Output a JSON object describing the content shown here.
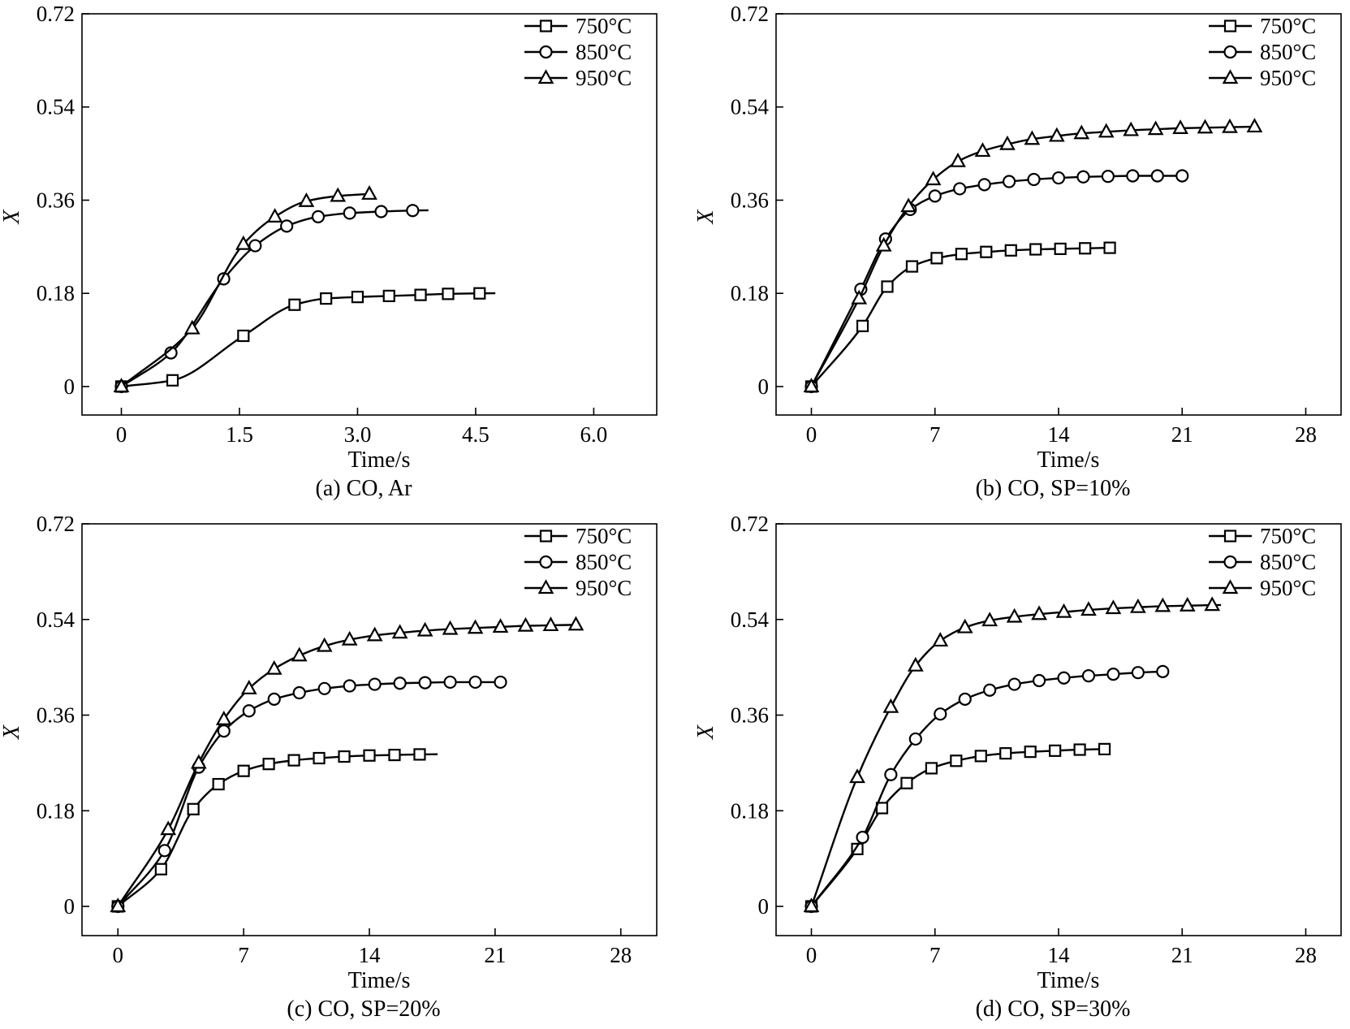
{
  "chart_data": [
    {
      "id": "a",
      "type": "line",
      "caption": "(a) CO, Ar",
      "xlabel": "Time/s",
      "ylabel": "X",
      "xlim": [
        -0.5,
        6.8
      ],
      "ylim": [
        -0.055,
        0.72
      ],
      "xticks": [
        0,
        1.5,
        3.0,
        4.5,
        6.0
      ],
      "xtick_labels": [
        "0",
        "1.5",
        "3.0",
        "4.5",
        "6.0"
      ],
      "yticks": [
        0,
        0.18,
        0.36,
        0.54,
        0.72
      ],
      "ytick_labels": [
        "0",
        "0.18",
        "0.36",
        "0.54",
        "0.72"
      ],
      "legend_position": "top-right",
      "series": [
        {
          "name": "750°C",
          "marker": "square",
          "x": [
            0,
            0.65,
            1.55,
            2.2,
            2.6,
            3.0,
            3.4,
            3.8,
            4.15,
            4.55
          ],
          "y": [
            0,
            0.012,
            0.098,
            0.158,
            0.17,
            0.173,
            0.175,
            0.177,
            0.179,
            0.18
          ],
          "x_end": 4.75
        },
        {
          "name": "850°C",
          "marker": "circle",
          "x": [
            0,
            0.63,
            1.3,
            1.7,
            2.1,
            2.5,
            2.9,
            3.3,
            3.7
          ],
          "y": [
            0,
            0.065,
            0.208,
            0.272,
            0.31,
            0.328,
            0.335,
            0.338,
            0.34
          ],
          "x_end": 3.9
        },
        {
          "name": "950°C",
          "marker": "triangle",
          "x": [
            0,
            0.9,
            1.55,
            1.95,
            2.35,
            2.75,
            3.15
          ],
          "y": [
            0,
            0.112,
            0.275,
            0.328,
            0.358,
            0.368,
            0.372
          ],
          "x_end": 3.15
        }
      ]
    },
    {
      "id": "b",
      "type": "line",
      "caption": "(b) CO, SP=10%",
      "xlabel": "Time/s",
      "ylabel": "X",
      "xlim": [
        -2,
        30
      ],
      "ylim": [
        -0.055,
        0.72
      ],
      "xticks": [
        0,
        7,
        14,
        21,
        28
      ],
      "xtick_labels": [
        "0",
        "7",
        "14",
        "21",
        "28"
      ],
      "yticks": [
        0,
        0.18,
        0.36,
        0.54,
        0.72
      ],
      "ytick_labels": [
        "0",
        "0.18",
        "0.36",
        "0.54",
        "0.72"
      ],
      "legend_position": "top-right",
      "series": [
        {
          "name": "750°C",
          "marker": "square",
          "x": [
            0,
            2.9,
            4.3,
            5.7,
            7.1,
            8.5,
            9.9,
            11.3,
            12.7,
            14.1,
            15.5,
            16.9
          ],
          "y": [
            0,
            0.117,
            0.193,
            0.232,
            0.248,
            0.256,
            0.26,
            0.263,
            0.265,
            0.266,
            0.267,
            0.268
          ],
          "x_end": 16.9
        },
        {
          "name": "850°C",
          "marker": "circle",
          "x": [
            0,
            2.8,
            4.2,
            5.6,
            7.0,
            8.4,
            9.8,
            11.2,
            12.6,
            14.0,
            15.4,
            16.8,
            18.2,
            19.6,
            21.0
          ],
          "y": [
            0,
            0.188,
            0.285,
            0.342,
            0.368,
            0.382,
            0.39,
            0.396,
            0.4,
            0.403,
            0.405,
            0.406,
            0.407,
            0.407,
            0.407
          ],
          "x_end": 21.0
        },
        {
          "name": "950°C",
          "marker": "triangle",
          "x": [
            0,
            2.7,
            4.1,
            5.5,
            6.9,
            8.3,
            9.7,
            11.1,
            12.5,
            13.9,
            15.3,
            16.7,
            18.1,
            19.5,
            20.9,
            22.3,
            23.7,
            25.1
          ],
          "y": [
            0,
            0.17,
            0.272,
            0.348,
            0.4,
            0.435,
            0.455,
            0.468,
            0.478,
            0.484,
            0.489,
            0.492,
            0.495,
            0.497,
            0.499,
            0.5,
            0.501,
            0.502
          ],
          "x_end": 25.1
        }
      ]
    },
    {
      "id": "c",
      "type": "line",
      "caption": "(c) CO, SP=20%",
      "xlabel": "Time/s",
      "ylabel": "X",
      "xlim": [
        -2,
        30
      ],
      "ylim": [
        -0.055,
        0.72
      ],
      "xticks": [
        0,
        7,
        14,
        21,
        28
      ],
      "xtick_labels": [
        "0",
        "7",
        "14",
        "21",
        "28"
      ],
      "yticks": [
        0,
        0.18,
        0.36,
        0.54,
        0.72
      ],
      "ytick_labels": [
        "0",
        "0.18",
        "0.36",
        "0.54",
        "0.72"
      ],
      "legend_position": "top-right",
      "series": [
        {
          "name": "750°C",
          "marker": "square",
          "x": [
            0,
            2.4,
            4.2,
            5.6,
            7.0,
            8.4,
            9.8,
            11.2,
            12.6,
            14.0,
            15.4,
            16.8
          ],
          "y": [
            0,
            0.07,
            0.183,
            0.23,
            0.255,
            0.268,
            0.275,
            0.279,
            0.282,
            0.284,
            0.285,
            0.286
          ],
          "x_end": 17.8
        },
        {
          "name": "850°C",
          "marker": "circle",
          "x": [
            0,
            2.6,
            4.5,
            5.9,
            7.3,
            8.7,
            10.1,
            11.5,
            12.9,
            14.3,
            15.7,
            17.1,
            18.5,
            19.9,
            21.3
          ],
          "y": [
            0,
            0.105,
            0.262,
            0.33,
            0.368,
            0.39,
            0.402,
            0.41,
            0.415,
            0.418,
            0.42,
            0.421,
            0.422,
            0.422,
            0.422
          ],
          "x_end": 21.6
        },
        {
          "name": "950°C",
          "marker": "triangle",
          "x": [
            0,
            2.8,
            4.5,
            5.9,
            7.3,
            8.7,
            10.1,
            11.5,
            12.9,
            14.3,
            15.7,
            17.1,
            18.5,
            19.9,
            21.3,
            22.7,
            24.1,
            25.5
          ],
          "y": [
            0,
            0.145,
            0.27,
            0.352,
            0.41,
            0.447,
            0.472,
            0.49,
            0.502,
            0.51,
            0.515,
            0.519,
            0.522,
            0.524,
            0.526,
            0.528,
            0.529,
            0.53
          ],
          "x_end": 25.5
        }
      ]
    },
    {
      "id": "d",
      "type": "line",
      "caption": "(d) CO, SP=30%",
      "xlabel": "Time/s",
      "ylabel": "X",
      "xlim": [
        -2,
        30
      ],
      "ylim": [
        -0.055,
        0.72
      ],
      "xticks": [
        0,
        7,
        14,
        21,
        28
      ],
      "xtick_labels": [
        "0",
        "7",
        "14",
        "21",
        "28"
      ],
      "yticks": [
        0,
        0.18,
        0.36,
        0.54,
        0.72
      ],
      "ytick_labels": [
        "0",
        "0.18",
        "0.36",
        "0.54",
        "0.72"
      ],
      "legend_position": "top-right",
      "series": [
        {
          "name": "750°C",
          "marker": "square",
          "x": [
            0,
            2.6,
            4.0,
            5.4,
            6.8,
            8.2,
            9.6,
            11.0,
            12.4,
            13.8,
            15.2,
            16.6
          ],
          "y": [
            0,
            0.108,
            0.185,
            0.232,
            0.26,
            0.274,
            0.283,
            0.288,
            0.291,
            0.293,
            0.295,
            0.296
          ],
          "x_end": 16.6
        },
        {
          "name": "850°C",
          "marker": "circle",
          "x": [
            0,
            2.9,
            4.5,
            5.9,
            7.3,
            8.7,
            10.1,
            11.5,
            12.9,
            14.3,
            15.7,
            17.1,
            18.5,
            19.9
          ],
          "y": [
            0,
            0.13,
            0.248,
            0.315,
            0.362,
            0.39,
            0.407,
            0.418,
            0.425,
            0.43,
            0.434,
            0.437,
            0.44,
            0.442
          ],
          "x_end": 19.9
        },
        {
          "name": "950°C",
          "marker": "triangle",
          "x": [
            0,
            2.6,
            4.5,
            5.9,
            7.3,
            8.7,
            10.1,
            11.5,
            12.9,
            14.3,
            15.7,
            17.1,
            18.5,
            19.9,
            21.3,
            22.7
          ],
          "y": [
            0,
            0.243,
            0.375,
            0.453,
            0.5,
            0.525,
            0.538,
            0.545,
            0.55,
            0.554,
            0.558,
            0.561,
            0.563,
            0.565,
            0.566,
            0.567
          ],
          "x_end": 23.2
        }
      ]
    }
  ]
}
